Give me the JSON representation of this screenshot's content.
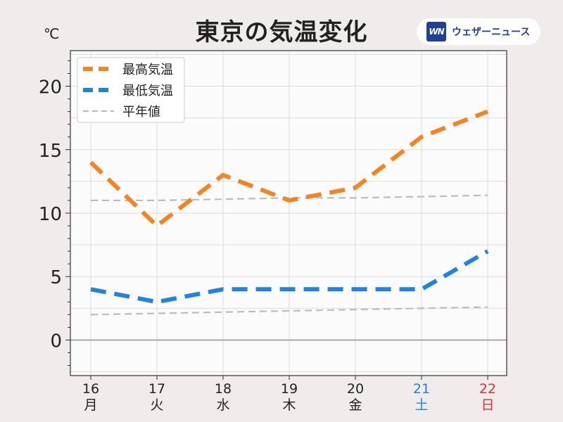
{
  "header": {
    "title": "東京の気温変化",
    "unit": "℃",
    "logo_mark": "WN",
    "logo_text": "ウェザーニュース"
  },
  "colors": {
    "max": "#f5841f",
    "min": "#1e82e6",
    "normal": "#bdbdbd",
    "saturday": "#1e82e6",
    "sunday": "#d6313b",
    "plot_bg": "#fcfbfc"
  },
  "chart_data": {
    "type": "line",
    "categories": [
      {
        "day": "16",
        "weekday": "月"
      },
      {
        "day": "17",
        "weekday": "火"
      },
      {
        "day": "18",
        "weekday": "水"
      },
      {
        "day": "19",
        "weekday": "木"
      },
      {
        "day": "20",
        "weekday": "金"
      },
      {
        "day": "21",
        "weekday": "土"
      },
      {
        "day": "22",
        "weekday": "日"
      }
    ],
    "series": [
      {
        "name": "最高気温",
        "values": [
          14,
          9,
          13,
          11,
          12,
          16,
          18
        ]
      },
      {
        "name": "最低気温",
        "values": [
          4,
          3,
          4,
          4,
          4,
          4,
          7
        ]
      },
      {
        "name": "平年値",
        "values": [
          11.0,
          11.0,
          11.1,
          11.2,
          11.2,
          11.3,
          11.4
        ]
      },
      {
        "name": "平年値",
        "values": [
          2.0,
          2.1,
          2.2,
          2.3,
          2.4,
          2.5,
          2.6
        ]
      }
    ],
    "legend": [
      "最高気温",
      "最低気温",
      "平年値"
    ],
    "legend_position": "top-left",
    "ylim": [
      -2.8,
      22.8
    ],
    "yticks": [
      0,
      5,
      10,
      15,
      20
    ],
    "grid": true
  }
}
